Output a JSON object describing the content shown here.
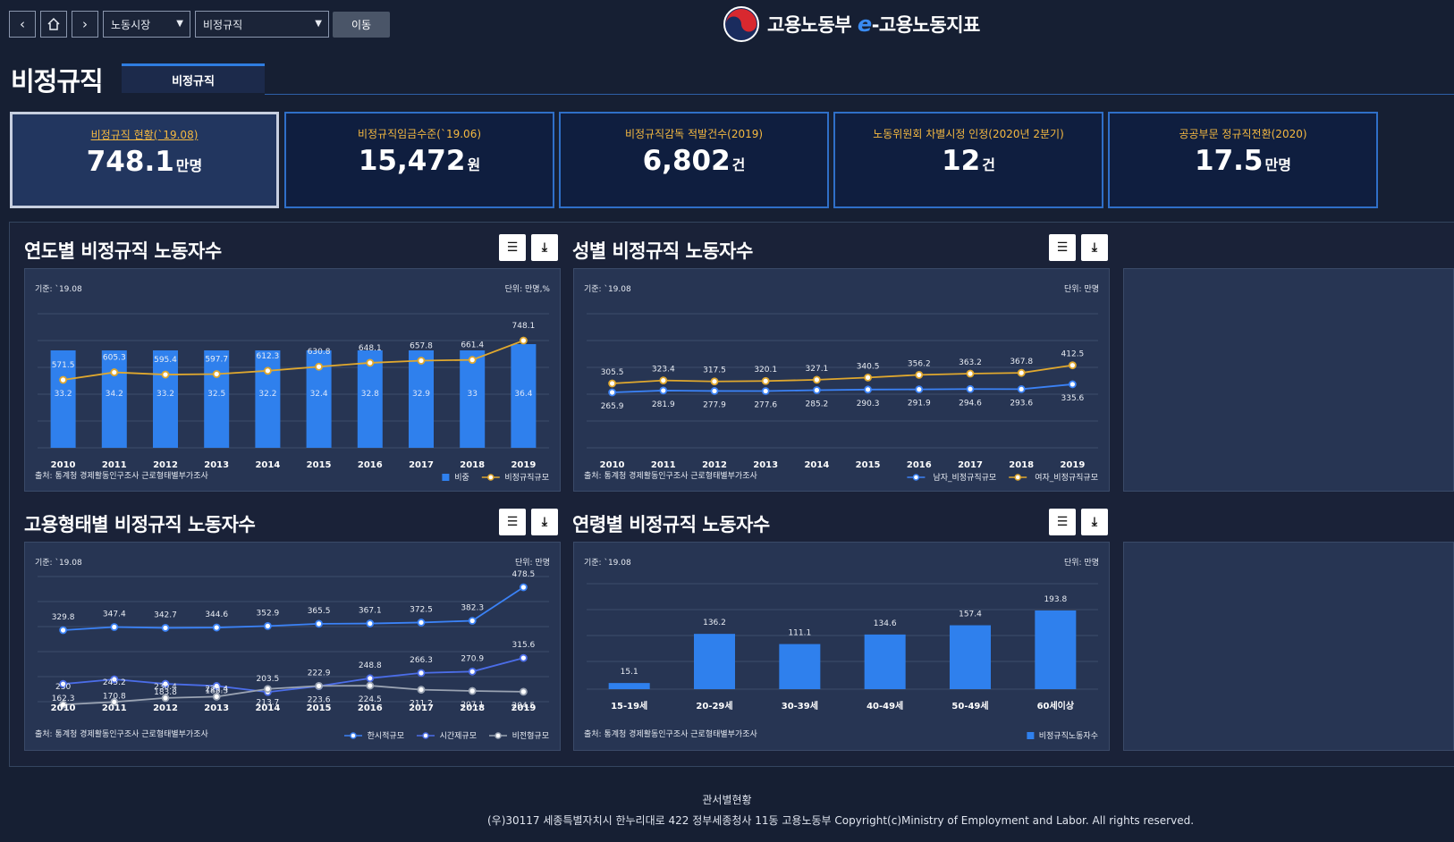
{
  "nav": {
    "back_icon": "chevron-left-icon",
    "home_icon": "home-icon",
    "forward_icon": "chevron-right-icon",
    "select1": "노동시장",
    "select2": "비정규직",
    "go_label": "이동"
  },
  "logo": {
    "text_pre": "고용노동부 ",
    "text_e": "e",
    "text_post": "-고용노동지표"
  },
  "page_title": "비정규직",
  "tab_label": "비정규직",
  "kpis": [
    {
      "label": "비정규직 현황(`19.08)",
      "value": "748.1",
      "unit": "만명"
    },
    {
      "label": "비정규직임금수준(`19.06)",
      "value": "15,472",
      "unit": "원"
    },
    {
      "label": "비정규직감독 적발건수(2019)",
      "value": "6,802",
      "unit": "건"
    },
    {
      "label": "노동위원회 차별시정 인정(2020년 2분기)",
      "value": "12",
      "unit": "건"
    },
    {
      "label": "공공부문 정규직전환(2020)",
      "value": "17.5",
      "unit": "만명"
    }
  ],
  "panels": {
    "p1": {
      "title": "연도별 비정규직 노동자수",
      "basis": "기준: `19.08",
      "unit": "단위: 만명,%",
      "source": "출처: 통계청 경제활동인구조사 근로형태별부가조사"
    },
    "p2": {
      "title": "성별 비정규직 노동자수",
      "basis": "기준: `19.08",
      "unit": "단위: 만명",
      "source": "출처: 통계청 경제활동인구조사 근로형태별부가조사"
    },
    "p3": {
      "title": "고용형태별 비정규직 노동자수",
      "basis": "기준: `19.08",
      "unit": "단위: 만명",
      "source": "출처: 통계청 경제활동인구조사 근로형태별부가조사"
    },
    "p4": {
      "title": "연령별 비정규직 노동자수",
      "basis": "기준: `19.08",
      "unit": "단위: 만명",
      "source": "출처: 통계청 경제활동인구조사 근로형태별부가조사"
    },
    "list_icon": "list-icon",
    "download_icon": "download-icon"
  },
  "colors": {
    "bar": "#2f80ed",
    "yellow": "#e0a82e",
    "blue": "#3b82f6",
    "blue2": "#4b6de8",
    "gray": "#9aa3b2"
  },
  "chart_data": [
    {
      "type": "bar",
      "categories": [
        "2010",
        "2011",
        "2012",
        "2013",
        "2014",
        "2015",
        "2016",
        "2017",
        "2018",
        "2019"
      ],
      "series": [
        {
          "name": "비중",
          "values": [
            33.2,
            34.2,
            33.2,
            32.5,
            32.2,
            32.4,
            32.8,
            32.9,
            33,
            36.4
          ]
        },
        {
          "name": "비정규직규모",
          "values": [
            571.5,
            605.3,
            595.4,
            597.7,
            612.3,
            630.8,
            648.1,
            657.8,
            661.4,
            748.1
          ]
        }
      ]
    },
    {
      "type": "line",
      "categories": [
        "2010",
        "2011",
        "2012",
        "2013",
        "2014",
        "2015",
        "2016",
        "2017",
        "2018",
        "2019"
      ],
      "series": [
        {
          "name": "남자_비정규직규모",
          "values": [
            265.9,
            281.9,
            277.9,
            277.6,
            285.2,
            290.3,
            291.9,
            294.6,
            293.6,
            335.6
          ]
        },
        {
          "name": "여자_비정규직규모",
          "values": [
            305.5,
            323.4,
            317.5,
            320.1,
            327.1,
            340.5,
            356.2,
            363.2,
            367.8,
            412.5
          ]
        }
      ]
    },
    {
      "type": "line",
      "categories": [
        "2010",
        "2011",
        "2012",
        "2013",
        "2014",
        "2015",
        "2016",
        "2017",
        "2018",
        "2019"
      ],
      "series": [
        {
          "name": "한시적규모",
          "values": [
            329.8,
            347.4,
            342.7,
            344.6,
            352.9,
            365.5,
            367.1,
            372.5,
            382.3,
            478.5
          ]
        },
        {
          "name": "시간제규모",
          "values": [
            230,
            245.2,
            230.4,
            223.4,
            203.5,
            222.9,
            248.8,
            266.3,
            270.9,
            315.6
          ]
        },
        {
          "name": "비전형규모",
          "values": [
            162.3,
            170.8,
            183.8,
            188.3,
            213.7,
            223.6,
            224.5,
            211.2,
            207.1,
            204.5
          ]
        }
      ]
    },
    {
      "type": "bar",
      "categories": [
        "15-19세",
        "20-29세",
        "30-39세",
        "40-49세",
        "50-49세",
        "60세이상"
      ],
      "series": [
        {
          "name": "비정규직노동자수",
          "values": [
            15.1,
            136.2,
            111.1,
            134.6,
            157.4,
            193.8
          ]
        }
      ]
    }
  ],
  "footer": {
    "line1": "관서별현황",
    "line2": "(우)30117 세종특별자치시 한누리대로 422 정부세종청사 11동 고용노동부 Copyright(c)Ministry of Employment and Labor. All rights reserved."
  }
}
